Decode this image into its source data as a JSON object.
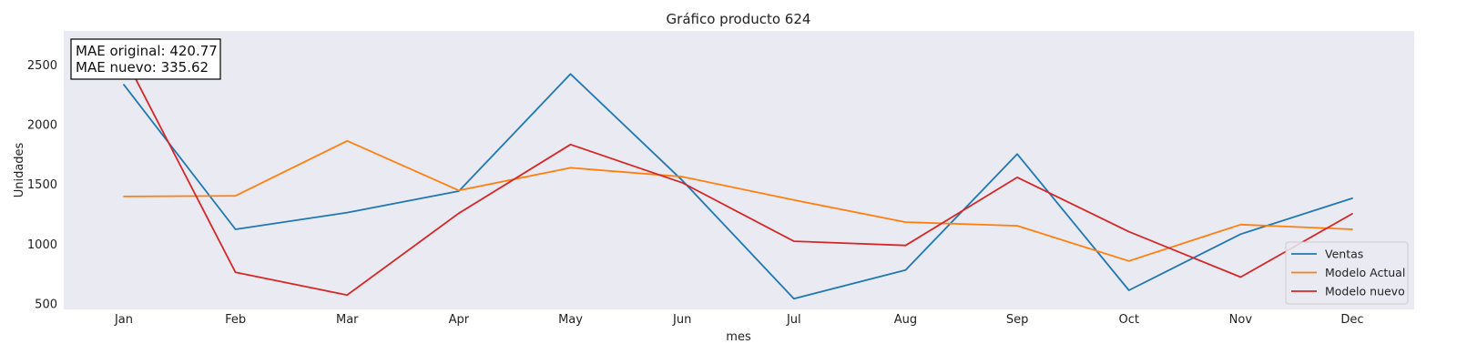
{
  "chart_data": {
    "type": "line",
    "title": "Gráfico producto 624",
    "xlabel": "mes",
    "ylabel": "Unidades",
    "categories": [
      "Jan",
      "Feb",
      "Mar",
      "Apr",
      "May",
      "Jun",
      "Jul",
      "Aug",
      "Sep",
      "Oct",
      "Nov",
      "Dec"
    ],
    "yticks": [
      500,
      1000,
      1500,
      2000,
      2500
    ],
    "ylim": [
      450,
      2780
    ],
    "grid": false,
    "legend_position": "lower right",
    "annotation_lines": [
      "MAE original: 420.77",
      "MAE nuevo: 335.62"
    ],
    "series": [
      {
        "name": "Ventas",
        "color": "#1f77b4",
        "values": [
          2330,
          1120,
          1260,
          1440,
          2420,
          1530,
          540,
          780,
          1750,
          610,
          1080,
          1380
        ]
      },
      {
        "name": "Modelo Actual",
        "color": "#ff7f0e",
        "values": [
          1395,
          1400,
          1860,
          1445,
          1635,
          1560,
          1365,
          1180,
          1150,
          855,
          1160,
          1120
        ]
      },
      {
        "name": "Modelo nuevo",
        "color": "#d62728",
        "values": [
          2570,
          760,
          570,
          1255,
          1830,
          1510,
          1020,
          985,
          1555,
          1100,
          720,
          1250
        ]
      }
    ]
  }
}
